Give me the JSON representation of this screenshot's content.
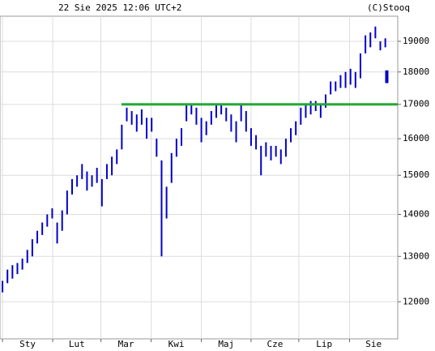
{
  "chart_data": {
    "type": "ohlc",
    "header_left": "22 Sie 2025 12:06 UTC+2",
    "header_right": "(C)Stooq",
    "log_scale": true,
    "grid": true,
    "ylim": [
      11240,
      19860
    ],
    "yticks": [
      12000,
      13000,
      14000,
      15000,
      16000,
      17000,
      18000,
      19000
    ],
    "xlim": [
      0,
      80
    ],
    "months": [
      {
        "value": 0.5,
        "label": "Sty"
      },
      {
        "value": 10.6,
        "label": "Lut"
      },
      {
        "value": 20.3,
        "label": "Mar"
      },
      {
        "value": 30.4,
        "label": "Kwi"
      },
      {
        "value": 40.5,
        "label": "Maj"
      },
      {
        "value": 50.5,
        "label": "Cze"
      },
      {
        "value": 60.1,
        "label": "Lip"
      },
      {
        "value": 70.3,
        "label": "Sie"
      }
    ],
    "series": [
      {
        "color": "#0000cc",
        "high": [
          12450,
          12700,
          12800,
          12850,
          12950,
          13150,
          13400,
          13600,
          13800,
          14000,
          14150,
          13800,
          14100,
          14600,
          14900,
          15000,
          15300,
          15100,
          15000,
          15200,
          14900,
          15300,
          15500,
          15700,
          16400,
          16900,
          16800,
          16700,
          16850,
          16600,
          16600,
          16000,
          15400,
          14700,
          15600,
          16000,
          16300,
          17000,
          17000,
          16900,
          16600,
          16500,
          16800,
          17000,
          17000,
          16900,
          16700,
          16500,
          17000,
          16800,
          16300,
          16100,
          15800,
          15900,
          15800,
          15800,
          15700,
          16000,
          16300,
          16500,
          16900,
          17000,
          17100,
          17100,
          17000,
          17300,
          17700,
          17700,
          17900,
          18000,
          18100,
          18000,
          18600,
          19200,
          19300,
          19500,
          19000,
          19100
        ],
        "low": [
          12200,
          12400,
          12500,
          12600,
          12700,
          12850,
          13000,
          13300,
          13500,
          13700,
          13900,
          13300,
          13600,
          14000,
          14500,
          14700,
          14900,
          14600,
          14700,
          14800,
          14200,
          14900,
          15000,
          15300,
          15700,
          16500,
          16400,
          16200,
          16400,
          16000,
          16200,
          15500,
          13000,
          13900,
          14800,
          15500,
          15800,
          16500,
          16700,
          16400,
          15900,
          16100,
          16400,
          16600,
          16700,
          16500,
          16200,
          15900,
          16500,
          16200,
          15800,
          15700,
          15000,
          15500,
          15400,
          15500,
          15300,
          15500,
          15900,
          16100,
          16400,
          16600,
          16700,
          16800,
          16600,
          16900,
          17300,
          17400,
          17500,
          17500,
          17600,
          17500,
          17800,
          18600,
          18800,
          19100,
          18700,
          18800
        ]
      }
    ],
    "last": {
      "x": 77.8,
      "high": 18050,
      "low": 17650,
      "color": "#0000cc"
    },
    "hline": {
      "value": 17000,
      "color": "#22aa33"
    }
  }
}
